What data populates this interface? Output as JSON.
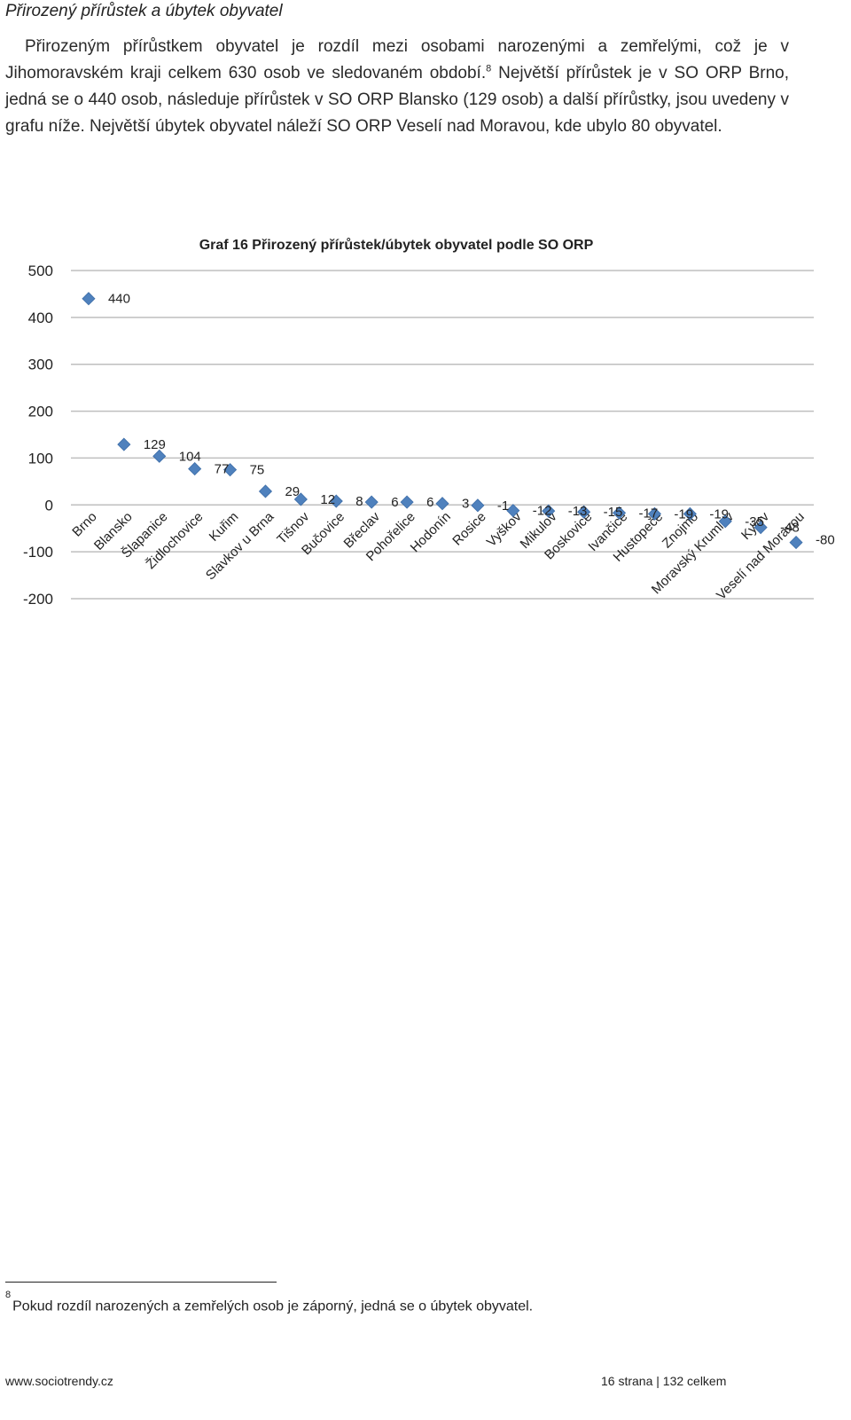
{
  "heading": "Přirozený přírůstek a úbytek obyvatel",
  "paragraph": {
    "part1": "Přirozeným přírůstkem obyvatel je rozdíl mezi osobami narozenými a zemřelými, což je v Jihomoravském kraji celkem 630 osob ve sledovaném období.",
    "footnote_ref": "8",
    "part2": "Největší přírůstek je v SO ORP Brno, jedná se o 440 osob, následuje přírůstek v SO ORP Blansko (129 osob) a další přírůstky, jsou uvedeny v grafu níže. Největší úbytek obyvatel náleží SO ORP Veselí nad Moravou, kde ubylo 80 obyvatel."
  },
  "chart_data": {
    "type": "scatter",
    "title": "Graf 16 Přirozený přírůstek/úbytek obyvatel podle SO ORP",
    "categories": [
      "Brno",
      "Blansko",
      "Šlapanice",
      "Židlochovice",
      "Kuřim",
      "Slavkov u Brna",
      "Tišnov",
      "Bučovice",
      "Břeclav",
      "Pohořelice",
      "Hodonín",
      "Rosice",
      "Vyškov",
      "Mikulov",
      "Boskovice",
      "Ivančice",
      "Hustopeče",
      "Znojmo",
      "Moravský Krumlov",
      "Kyjov",
      "Veselí nad Moravou"
    ],
    "values": [
      440,
      129,
      104,
      77,
      75,
      29,
      12,
      8,
      6,
      6,
      3,
      -1,
      -12,
      -13,
      -15,
      -17,
      -19,
      -19,
      -35,
      -48,
      -80
    ],
    "data_labels": [
      "440",
      "129",
      "104",
      "77",
      "75",
      "29",
      "12",
      "8",
      "6",
      "6",
      "3",
      "-1",
      "-12",
      "-13",
      "-15",
      "-17",
      "-19",
      "-19",
      "-35",
      "-48",
      "-80"
    ],
    "y_ticks": [
      "500",
      "400",
      "300",
      "200",
      "100",
      "0",
      "-100",
      "-200"
    ],
    "ylim": [
      -200,
      500
    ],
    "grid": true,
    "marker": "diamond",
    "marker_color": "#4F81BD",
    "gridline_color": "#bfbfbf"
  },
  "footnote": {
    "number": "8",
    "text": "Pokud rozdíl narozených a zemřelých osob je záporný, jedná se o úbytek obyvatel."
  },
  "footer": {
    "site": "www.sociotrendy.cz",
    "page": "16 strana | 132 celkem"
  }
}
